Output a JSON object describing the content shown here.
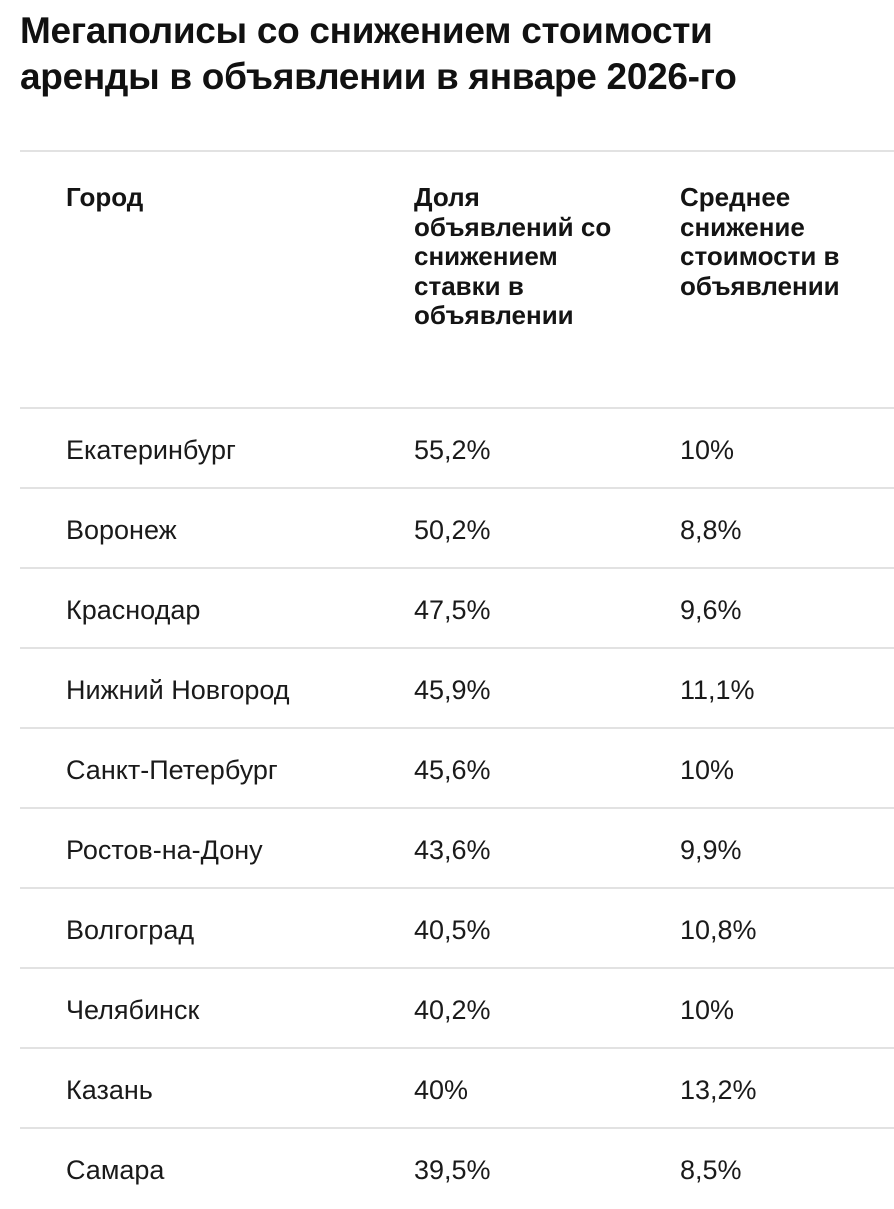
{
  "title_lines": [
    "Мегаполисы со снижением стоимости",
    "аренды в объявлении в январе 2026-го"
  ],
  "table": {
    "headers": {
      "city": "Город",
      "share": "Доля объявлений со снижением ставки в объявлении",
      "drop": "Среднее снижение стоимости в объявлении"
    },
    "rows": [
      {
        "city": "Екатеринбург",
        "share": "55,2%",
        "drop": "10%"
      },
      {
        "city": "Воронеж",
        "share": "50,2%",
        "drop": "8,8%"
      },
      {
        "city": "Краснодар",
        "share": "47,5%",
        "drop": "9,6%"
      },
      {
        "city": "Нижний Новгород",
        "share": "45,9%",
        "drop": "11,1%"
      },
      {
        "city": "Санкт-Петербург",
        "share": "45,6%",
        "drop": "10%"
      },
      {
        "city": "Ростов-на-Дону",
        "share": "43,6%",
        "drop": "9,9%"
      },
      {
        "city": "Волгоград",
        "share": "40,5%",
        "drop": "10,8%"
      },
      {
        "city": "Челябинск",
        "share": "40,2%",
        "drop": "10%"
      },
      {
        "city": "Казань",
        "share": "40%",
        "drop": "13,2%"
      },
      {
        "city": "Самара",
        "share": "39,5%",
        "drop": "8,5%"
      }
    ]
  }
}
